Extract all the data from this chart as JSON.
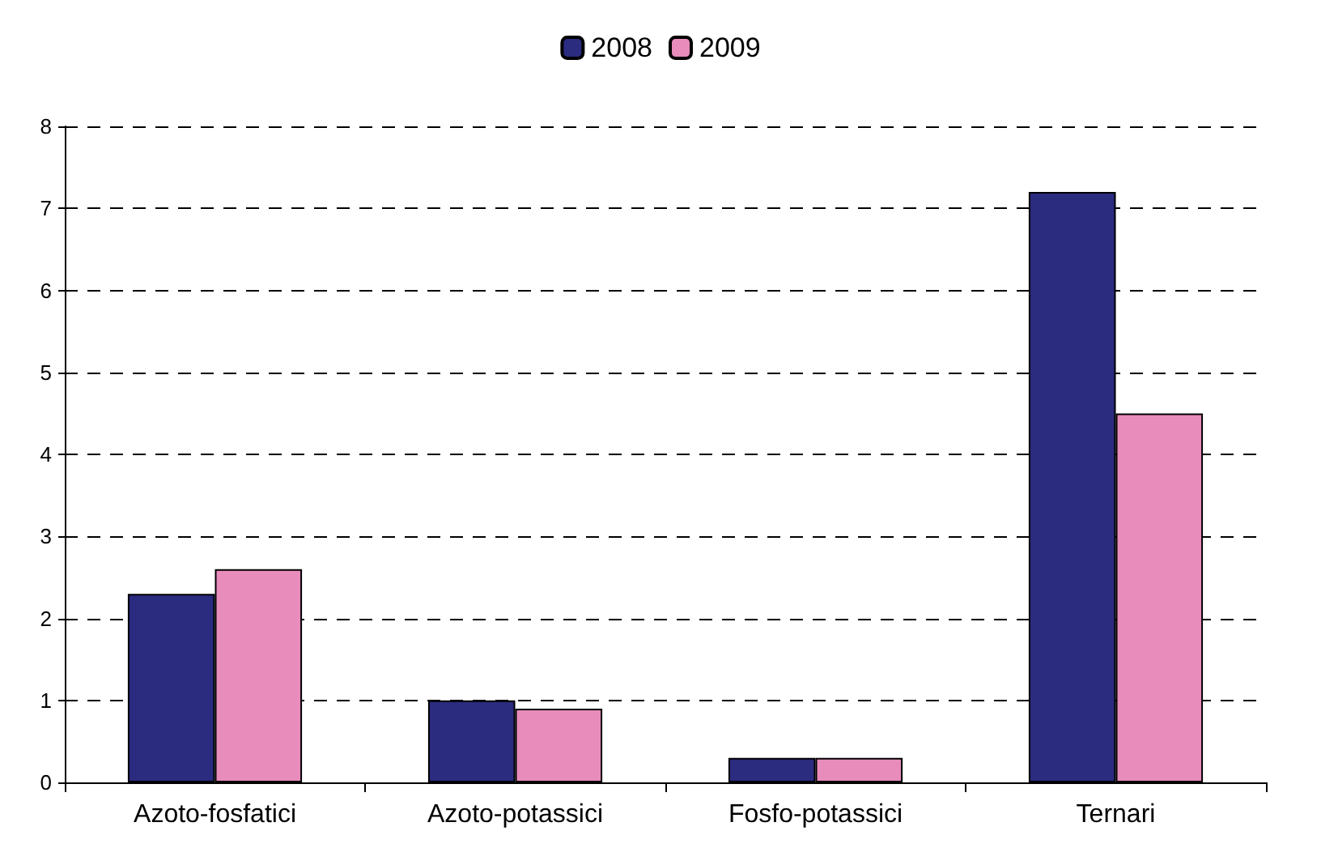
{
  "chart_data": {
    "type": "bar",
    "categories": [
      "Azoto-fosfatici",
      "Azoto-potassici",
      "Fosfo-potassici",
      "Ternari"
    ],
    "series": [
      {
        "name": "2008",
        "color": "#2b2b80",
        "values": [
          2.3,
          1.0,
          0.3,
          7.2
        ]
      },
      {
        "name": "2009",
        "color": "#e88cbc",
        "values": [
          2.6,
          0.9,
          0.3,
          4.5
        ]
      }
    ],
    "ylim": [
      0,
      8
    ],
    "yticks": [
      0,
      1,
      2,
      3,
      4,
      5,
      6,
      7,
      8
    ],
    "grid": "y",
    "legend": "top"
  }
}
